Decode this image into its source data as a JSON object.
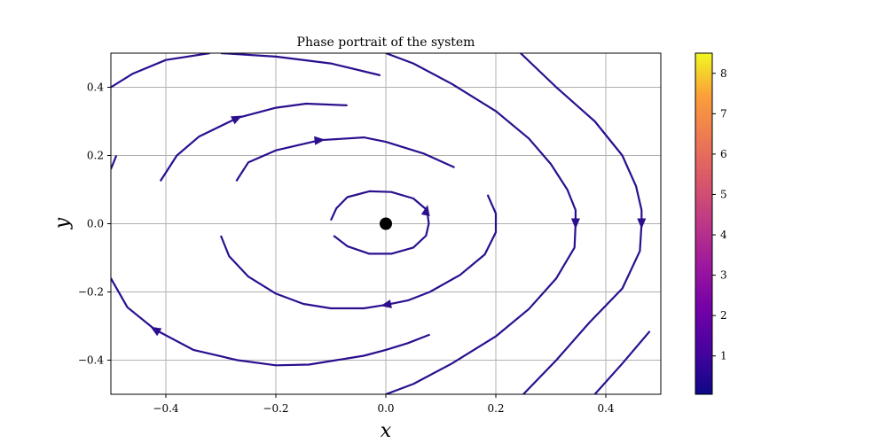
{
  "chart_data": {
    "type": "streamplot",
    "title": "Phase portrait of the system",
    "xlabel": "x",
    "ylabel": "y",
    "xlim": [
      -0.5,
      0.5
    ],
    "ylim": [
      -0.5,
      0.5
    ],
    "x_ticks": [
      -0.4,
      -0.2,
      0.0,
      0.2,
      0.4
    ],
    "x_tick_labels": [
      "−0.4",
      "−0.2",
      "0.0",
      "0.2",
      "0.4"
    ],
    "y_ticks": [
      -0.4,
      -0.2,
      0.0,
      0.2,
      0.4
    ],
    "y_tick_labels": [
      "−0.4",
      "−0.2",
      "0.0",
      "0.2",
      "0.4"
    ],
    "grid": true,
    "line_color": "#2b0f8f",
    "equilibrium_point": {
      "x": 0.0,
      "y": 0.0,
      "color": "#000000"
    },
    "colorbar": {
      "colormap": "plasma",
      "range": [
        0.05,
        8.5
      ],
      "ticks": [
        1,
        2,
        3,
        4,
        5,
        6,
        7,
        8
      ],
      "tick_labels": [
        "1",
        "2",
        "3",
        "4",
        "5",
        "6",
        "7",
        "8"
      ]
    },
    "streamlines": [
      {
        "points": [
          [
            -0.5,
            0.4
          ],
          [
            -0.46,
            0.44
          ],
          [
            -0.4,
            0.48
          ],
          [
            -0.32,
            0.5
          ]
        ]
      },
      {
        "points": [
          [
            -0.3,
            0.5
          ],
          [
            -0.2,
            0.49
          ],
          [
            -0.1,
            0.47
          ],
          [
            -0.01,
            0.435
          ]
        ]
      },
      {
        "points": [
          [
            0.0,
            0.5
          ],
          [
            0.05,
            0.47
          ],
          [
            0.12,
            0.41
          ],
          [
            0.2,
            0.33
          ],
          [
            0.26,
            0.25
          ],
          [
            0.3,
            0.175
          ],
          [
            0.33,
            0.1
          ],
          [
            0.345,
            0.04
          ],
          [
            0.345,
            0.0
          ],
          [
            0.343,
            -0.07
          ],
          [
            0.31,
            -0.16
          ],
          [
            0.26,
            -0.25
          ],
          [
            0.2,
            -0.33
          ],
          [
            0.12,
            -0.41
          ],
          [
            0.05,
            -0.47
          ],
          [
            0.0,
            -0.5
          ]
        ]
      },
      {
        "points": [
          [
            0.245,
            0.5
          ],
          [
            0.31,
            0.4
          ],
          [
            0.38,
            0.3
          ],
          [
            0.43,
            0.2
          ],
          [
            0.455,
            0.11
          ],
          [
            0.465,
            0.04
          ],
          [
            0.465,
            0.0
          ],
          [
            0.462,
            -0.08
          ],
          [
            0.43,
            -0.19
          ],
          [
            0.37,
            -0.29
          ],
          [
            0.31,
            -0.4
          ],
          [
            0.25,
            -0.5
          ]
        ]
      },
      {
        "points": [
          [
            0.38,
            -0.5
          ],
          [
            0.43,
            -0.41
          ],
          [
            0.48,
            -0.315
          ]
        ]
      },
      {
        "points": [
          [
            -0.41,
            0.125
          ],
          [
            -0.38,
            0.2
          ],
          [
            -0.34,
            0.255
          ],
          [
            -0.27,
            0.31
          ],
          [
            -0.2,
            0.34
          ],
          [
            -0.145,
            0.352
          ],
          [
            -0.07,
            0.347
          ]
        ]
      },
      {
        "points": [
          [
            -0.272,
            0.125
          ],
          [
            -0.25,
            0.18
          ],
          [
            -0.2,
            0.215
          ],
          [
            -0.12,
            0.245
          ],
          [
            -0.04,
            0.253
          ],
          [
            0.0,
            0.24
          ],
          [
            0.07,
            0.205
          ],
          [
            0.125,
            0.165
          ]
        ]
      },
      {
        "points": [
          [
            -0.5,
            0.16
          ],
          [
            -0.49,
            0.2
          ]
        ]
      },
      {
        "points": [
          [
            -0.1,
            0.01
          ],
          [
            -0.09,
            0.045
          ],
          [
            -0.07,
            0.078
          ],
          [
            -0.03,
            0.095
          ],
          [
            0.01,
            0.093
          ],
          [
            0.05,
            0.074
          ],
          [
            0.075,
            0.04
          ],
          [
            0.078,
            0.0
          ],
          [
            0.073,
            -0.035
          ],
          [
            0.05,
            -0.07
          ],
          [
            0.01,
            -0.088
          ],
          [
            -0.03,
            -0.088
          ],
          [
            -0.07,
            -0.066
          ],
          [
            -0.095,
            -0.035
          ]
        ]
      },
      {
        "points": [
          [
            -0.3,
            -0.035
          ],
          [
            -0.285,
            -0.095
          ],
          [
            -0.25,
            -0.155
          ],
          [
            -0.2,
            -0.205
          ],
          [
            -0.15,
            -0.235
          ],
          [
            -0.1,
            -0.248
          ],
          [
            -0.04,
            -0.248
          ],
          [
            0.0,
            -0.238
          ],
          [
            0.04,
            -0.225
          ],
          [
            0.08,
            -0.2
          ],
          [
            0.135,
            -0.15
          ],
          [
            0.18,
            -0.09
          ],
          [
            0.2,
            -0.025
          ],
          [
            0.2,
            0.03
          ],
          [
            0.185,
            0.085
          ]
        ]
      },
      {
        "points": [
          [
            -0.5,
            -0.16
          ],
          [
            -0.47,
            -0.245
          ],
          [
            -0.42,
            -0.31
          ],
          [
            -0.35,
            -0.37
          ],
          [
            -0.27,
            -0.4
          ],
          [
            -0.2,
            -0.415
          ],
          [
            -0.14,
            -0.413
          ],
          [
            -0.09,
            -0.4
          ],
          [
            -0.04,
            -0.387
          ],
          [
            0.0,
            -0.37
          ],
          [
            0.04,
            -0.35
          ],
          [
            0.08,
            -0.325
          ]
        ]
      }
    ],
    "arrows": [
      {
        "x": -0.27,
        "y": 0.31,
        "dx": 1,
        "dy": 0.5
      },
      {
        "x": -0.12,
        "y": 0.245,
        "dx": 1,
        "dy": 0.1
      },
      {
        "x": 0.074,
        "y": 0.04,
        "dx": 0.2,
        "dy": 1
      },
      {
        "x": 0.345,
        "y": 0.0,
        "dx": 0,
        "dy": -1
      },
      {
        "x": 0.465,
        "y": 0.0,
        "dx": 0,
        "dy": -1
      },
      {
        "x": 0.0,
        "y": -0.238,
        "dx": -1,
        "dy": -0.2
      },
      {
        "x": -0.42,
        "y": -0.31,
        "dx": -1,
        "dy": 0.6
      }
    ]
  }
}
